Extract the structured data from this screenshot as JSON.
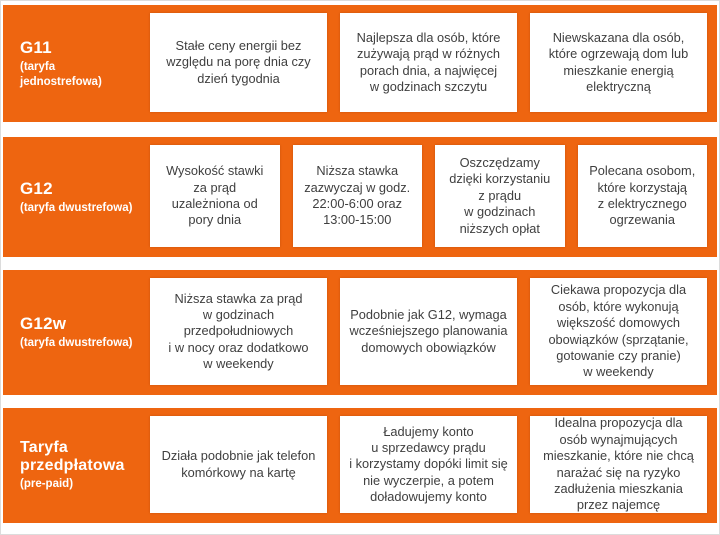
{
  "theme": {
    "accent_orange": "#EE6510",
    "card_background": "#FFFFFF",
    "card_text_color": "#3F3F3F",
    "label_text_color": "#FFFFFF",
    "page_background": "#FFFFFF",
    "page_border": "#DCDCDC"
  },
  "rows": [
    {
      "label_title": "G11",
      "label_sub": "(taryfa jednostrefowa)",
      "cards": [
        "Stałe ceny energii bez względu na porę dnia czy dzień tygodnia",
        "Najlepsza dla osób, które zużywają prąd w różnych porach dnia, a najwięcej w godzinach szczytu",
        "Niewskazana dla osób, które ogrzewają dom lub mieszkanie energią elektryczną"
      ]
    },
    {
      "label_title": "G12",
      "label_sub": "(taryfa dwustrefowa)",
      "cards": [
        "Wysokość stawki za prąd uzależniona od pory dnia",
        "Niższa stawka zazwyczaj w godz. 22:00-6:00 oraz 13:00-15:00",
        "Oszczędzamy dzięki korzystaniu z prądu w godzinach niższych opłat",
        "Polecana osobom, które korzystają z elektrycznego ogrzewania"
      ]
    },
    {
      "label_title": "G12w",
      "label_sub": "(taryfa dwustrefowa)",
      "cards": [
        "Niższa stawka za prąd w godzinach przedpołudniowych i w nocy oraz dodatkowo w weekendy",
        "Podobnie jak G12, wymaga wcześniejszego planowania domowych obowiązków",
        "Ciekawa propozycja dla osób, które wykonują większość domowych obowiązków (sprzątanie, gotowanie czy pranie) w weekendy"
      ]
    },
    {
      "label_title": "Taryfa przedpłatowa",
      "label_sub": "(pre-paid)",
      "cards": [
        "Działa podobnie jak telefon komórkowy na kartę",
        "Ładujemy konto u sprzedawcy prądu i korzystamy dopóki limit się nie wyczerpie, a potem doładowujemy konto",
        "Idealna propozycja dla osób wynajmujących mieszkanie, które nie chcą narażać się na ryzyko zadłużenia mieszkania przez najemcę"
      ]
    }
  ]
}
